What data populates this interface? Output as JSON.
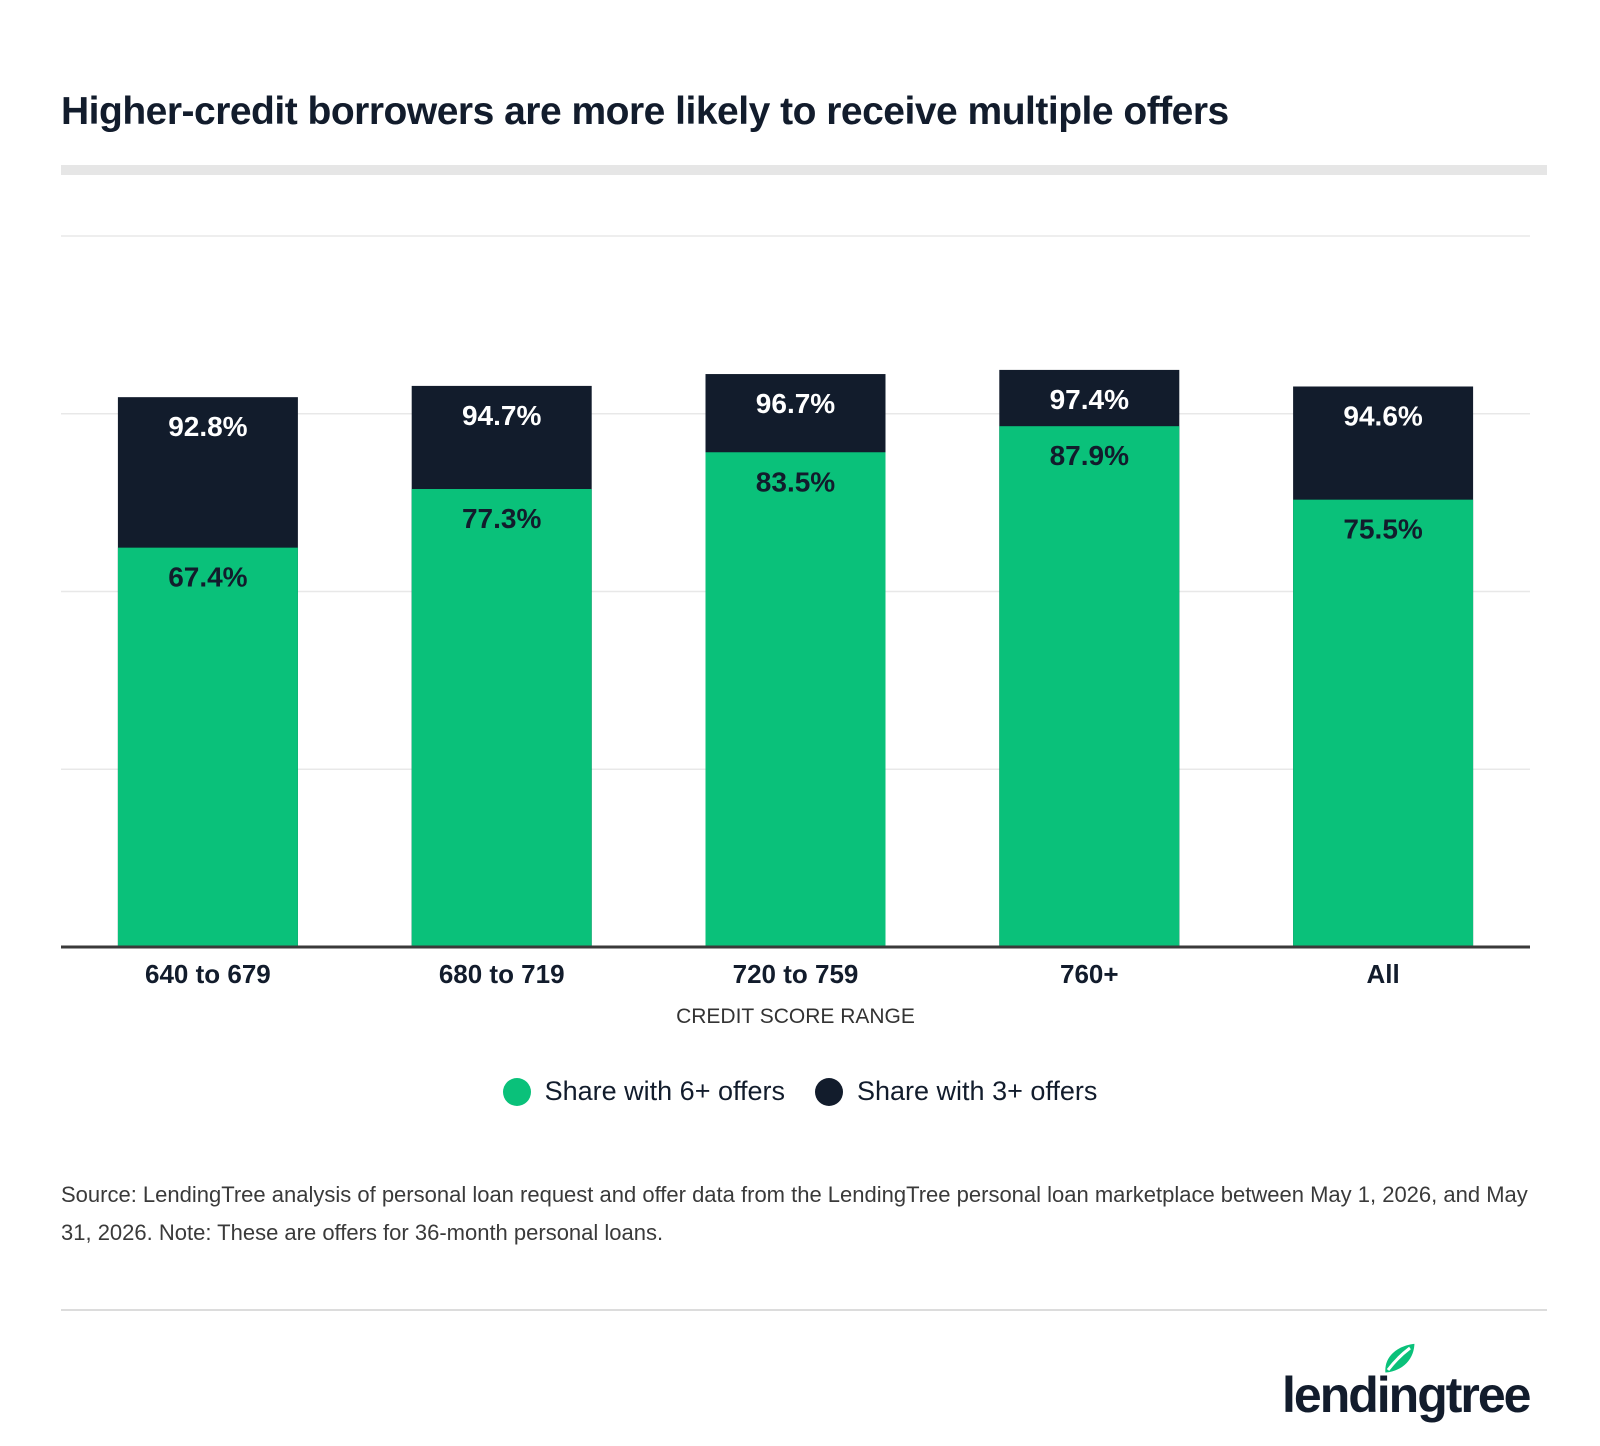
{
  "title": "Higher-credit borrowers are more likely to receive multiple offers",
  "chart_data": {
    "type": "bar",
    "stacking": "overlay",
    "categories": [
      "640 to 679",
      "680 to 719",
      "720 to 759",
      "760+",
      "All"
    ],
    "series": [
      {
        "name": "Share with 3+ offers",
        "color": "#121c2c",
        "label_color": "#ffffff",
        "values": [
          92.8,
          94.7,
          96.7,
          97.4,
          94.6
        ]
      },
      {
        "name": "Share with 6+ offers",
        "color": "#0ac17a",
        "label_color": "#121c2c",
        "values": [
          67.4,
          77.3,
          83.5,
          87.9,
          75.5
        ]
      }
    ],
    "value_suffix": "%",
    "xlabel": "CREDIT SCORE RANGE",
    "ylabel": "",
    "ylim": [
      0,
      120
    ],
    "grid": true,
    "legend_position": "bottom-center"
  },
  "legend": [
    {
      "label": "Share with 6+ offers",
      "color": "#0ac17a"
    },
    {
      "label": "Share with 3+ offers",
      "color": "#121c2c"
    }
  ],
  "source_text": "Source: LendingTree analysis of personal loan request and offer data from the LendingTree personal loan marketplace between May 1, 2026, and May 31, 2026. Note: These are offers for 36-month personal loans.",
  "logo": {
    "text": "lendingtree",
    "icon": "leaf-icon",
    "color": "#121c2c",
    "accent": "#0ac17a"
  }
}
